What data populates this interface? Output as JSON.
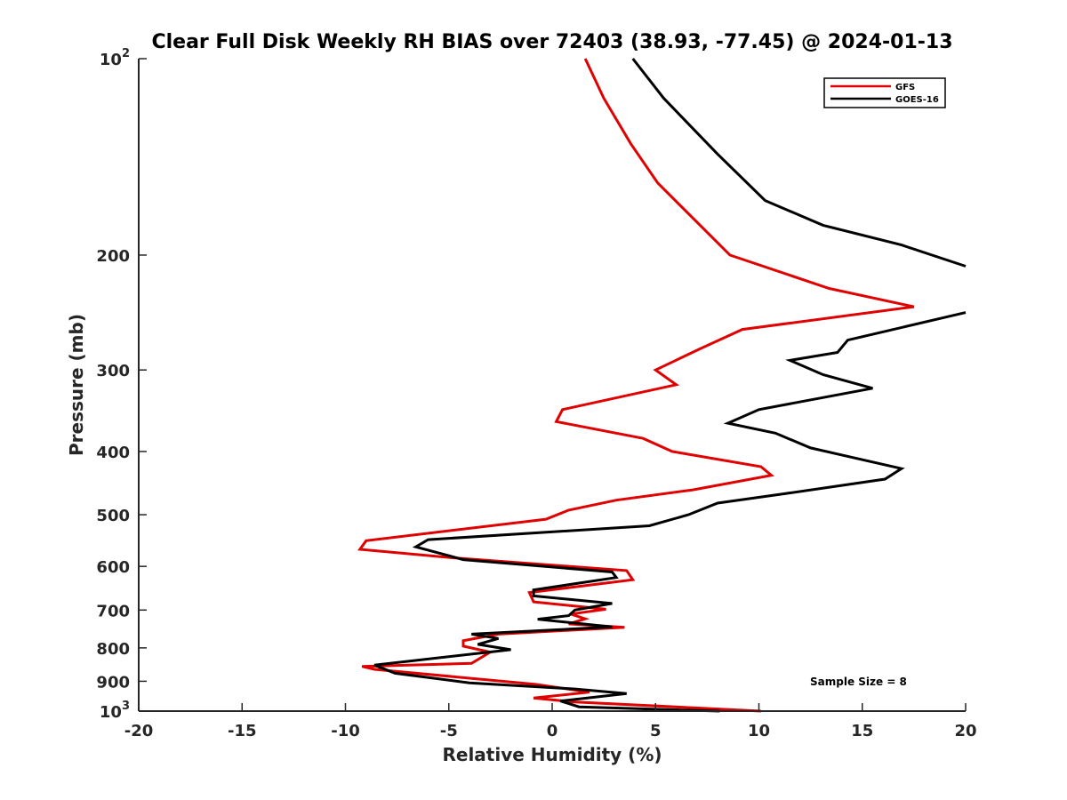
{
  "chart_data": {
    "type": "line",
    "title": "Clear Full Disk Weekly RH BIAS over 72403 (38.93, -77.45) @ 2024-01-13",
    "xlabel": "Relative Humidity (%)",
    "ylabel": "Pressure (mb)",
    "xlim": [
      -20,
      20
    ],
    "ylim": [
      100,
      1000
    ],
    "y_scale": "log",
    "y_reversed": true,
    "x_ticks": [
      "-20",
      "-15",
      "-10",
      "-5",
      "0",
      "5",
      "10",
      "15",
      "20"
    ],
    "y_ticks": [
      {
        "value": 100,
        "base": "10",
        "exp": "2"
      },
      {
        "value": 200,
        "label": "200"
      },
      {
        "value": 300,
        "label": "300"
      },
      {
        "value": 400,
        "label": "400"
      },
      {
        "value": 500,
        "label": "500"
      },
      {
        "value": 600,
        "label": "600"
      },
      {
        "value": 700,
        "label": "700"
      },
      {
        "value": 800,
        "label": "800"
      },
      {
        "value": 900,
        "label": "900"
      },
      {
        "value": 1000,
        "base": "10",
        "exp": "3"
      }
    ],
    "grid": false,
    "legend_position": "top-right",
    "annotation": "Sample Size = 8",
    "series": [
      {
        "name": "GFS",
        "color": "#e00000",
        "x": [
          1.6,
          2.5,
          3.8,
          5.1,
          8.6,
          13.4,
          17.5,
          9.2,
          7.2,
          5.0,
          6.0,
          0.5,
          0.2,
          4.4,
          5.8,
          10.1,
          10.6,
          6.8,
          3.1,
          0.8,
          -0.3,
          -9.0,
          -9.3,
          -4.8,
          3.6,
          3.9,
          -1.1,
          -0.9,
          2.6,
          0.9,
          1.6,
          0.8,
          3.5,
          -2.6,
          -4.3,
          -4.3,
          -3.0,
          -3.9,
          -9.2,
          -8.6,
          -0.8,
          1.8,
          -0.9,
          1.0,
          10.1
        ],
        "y": [
          100,
          115,
          135,
          155,
          200,
          225,
          240,
          260,
          278,
          300,
          316,
          345,
          360,
          382,
          400,
          422,
          435,
          458,
          475,
          492,
          508,
          548,
          565,
          582,
          609,
          629,
          658,
          680,
          698,
          710,
          722,
          735,
          744,
          762,
          780,
          795,
          812,
          845,
          854,
          863,
          910,
          935,
          955,
          968,
          1000
        ]
      },
      {
        "name": "GOES-16",
        "color": "#000000",
        "x": [
          3.9,
          5.4,
          8.0,
          10.3,
          13.1,
          16.9,
          20.0,
          null,
          20.0,
          14.3,
          13.8,
          11.5,
          13.1,
          15.5,
          10.0,
          8.5,
          10.8,
          12.5,
          16.9,
          16.1,
          11.1,
          8.0,
          6.6,
          4.7,
          -6.0,
          -6.6,
          -4.3,
          2.9,
          3.1,
          -0.9,
          -0.9,
          2.9,
          1.1,
          0.8,
          -0.7,
          2.9,
          -3.9,
          -2.6,
          -3.6,
          -2.0,
          -8.6,
          -7.6,
          -4.0,
          1.1,
          3.6,
          0.4,
          1.3,
          8.1
        ],
        "y": [
          100,
          115,
          140,
          165,
          180,
          193,
          208,
          null,
          245,
          270,
          282,
          290,
          305,
          320,
          345,
          362,
          375,
          395,
          425,
          441,
          465,
          480,
          500,
          520,
          546,
          560,
          586,
          612,
          624,
          652,
          666,
          684,
          700,
          714,
          723,
          743,
          762,
          774,
          790,
          805,
          850,
          875,
          905,
          925,
          940,
          965,
          985,
          1000
        ]
      }
    ]
  }
}
